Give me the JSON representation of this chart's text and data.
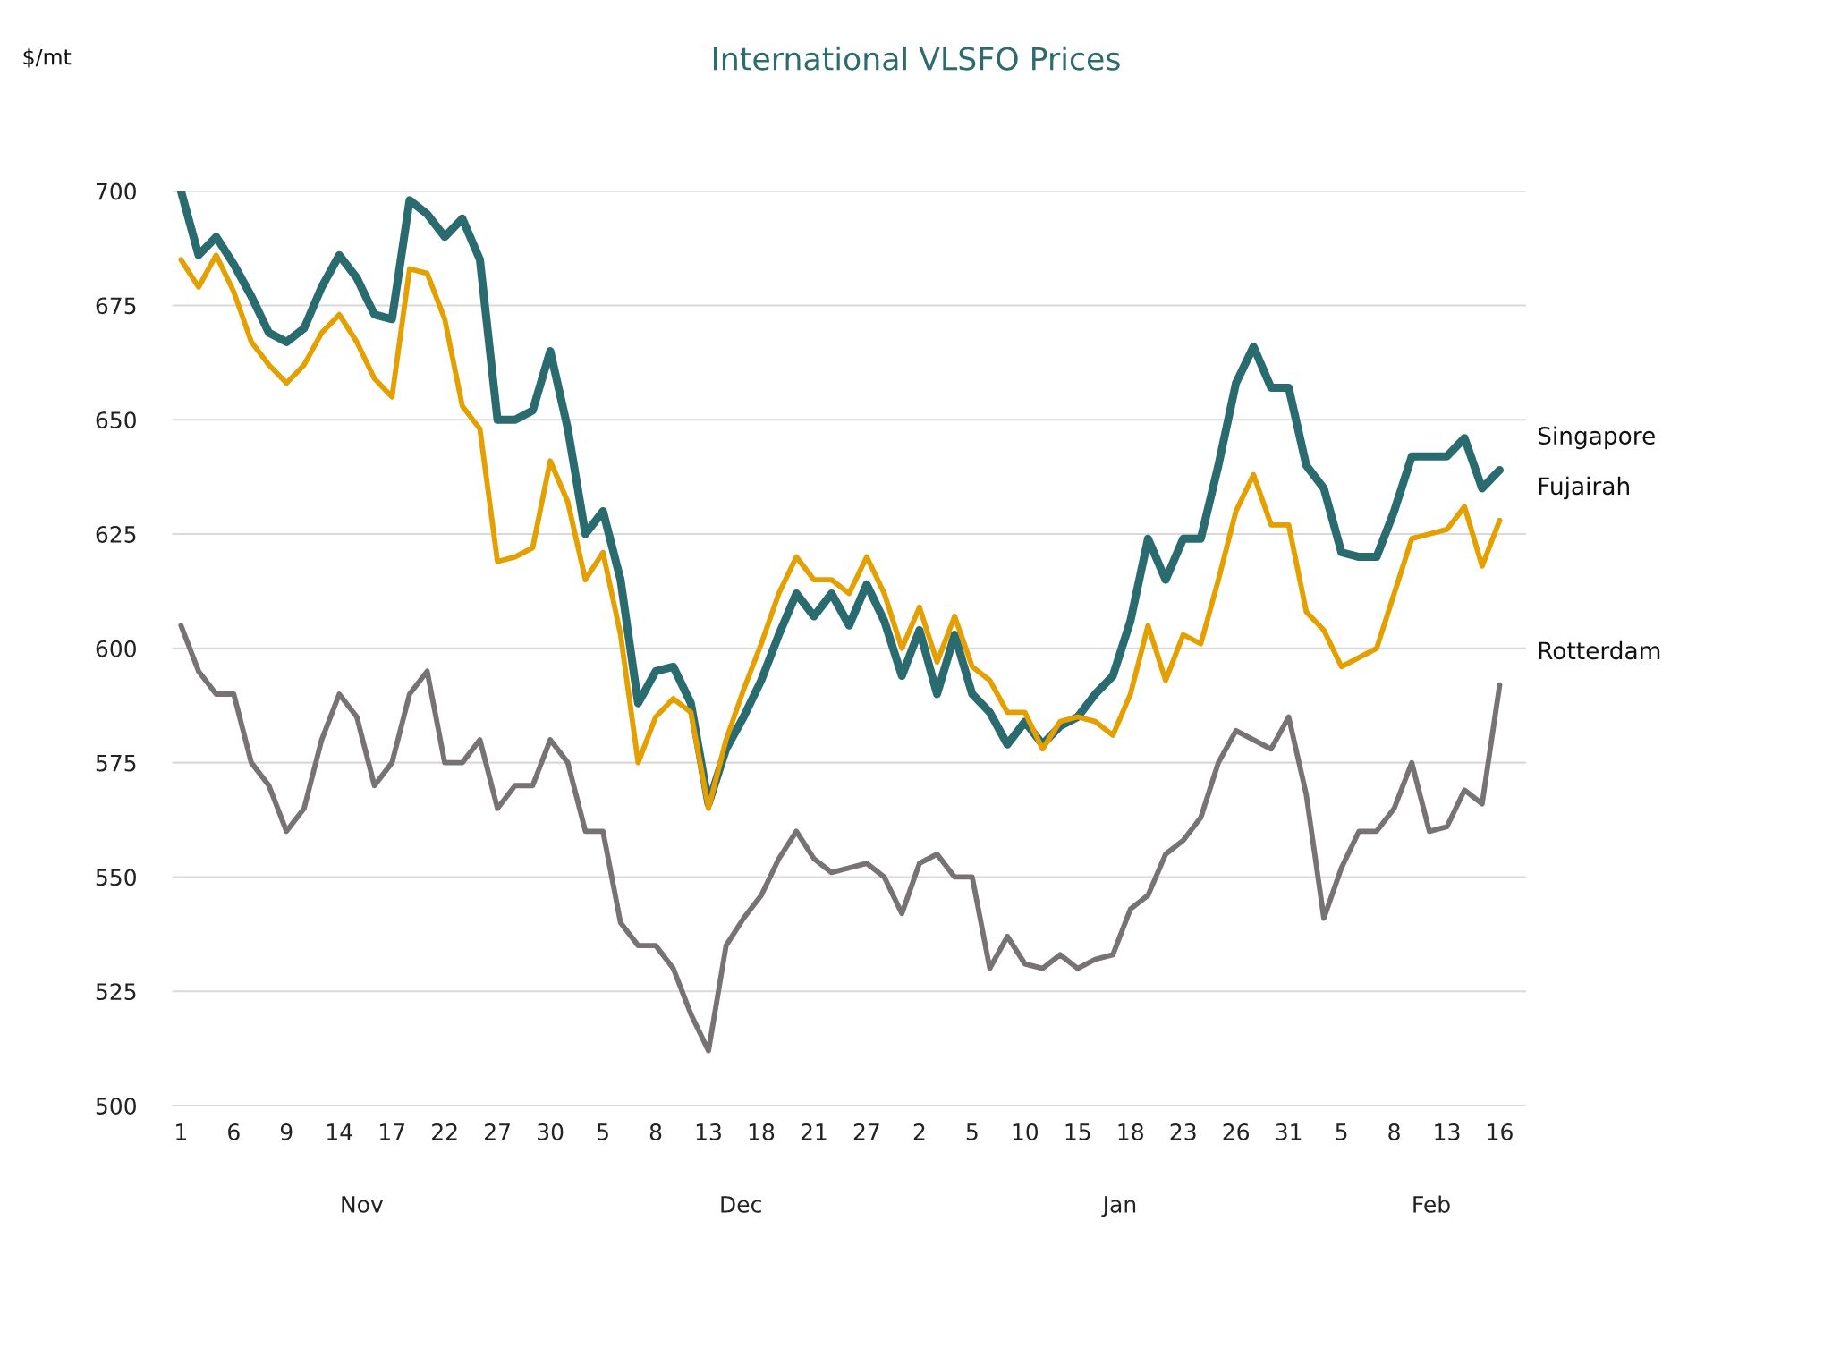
{
  "chart_data": {
    "type": "line",
    "title": "International VLSFO Prices",
    "categories": [
      "1",
      null,
      null,
      "6",
      null,
      null,
      "9",
      null,
      null,
      "14",
      null,
      null,
      "17",
      null,
      null,
      "22",
      null,
      null,
      "27",
      null,
      null,
      "30",
      null,
      null,
      "5",
      null,
      null,
      "8",
      null,
      null,
      "13",
      null,
      null,
      "18",
      null,
      null,
      "21",
      null,
      null,
      "27",
      null,
      null,
      "2",
      null,
      null,
      "5",
      null,
      null,
      "10",
      null,
      null,
      "15",
      null,
      null,
      "18",
      null,
      null,
      "23",
      null,
      null,
      "26",
      null,
      null,
      "31",
      null,
      null,
      "5",
      null,
      null,
      "8",
      null,
      null,
      "13",
      null,
      null,
      "16"
    ],
    "series": [
      {
        "name": "Singapore",
        "color": "#2a6b70",
        "values": [
          700,
          686,
          690,
          684,
          677,
          669,
          667,
          670,
          679,
          686,
          681,
          673,
          672,
          698,
          695,
          690,
          694,
          685,
          650,
          650,
          652,
          665,
          648,
          625,
          630,
          615,
          588,
          595,
          596,
          588,
          566,
          578,
          585,
          593,
          603,
          612,
          607,
          612,
          605,
          614,
          606,
          594,
          604,
          590,
          603,
          590,
          586,
          579,
          584,
          579,
          583,
          585,
          590,
          594,
          606,
          624,
          615,
          624,
          624,
          640,
          658,
          666,
          657,
          657,
          640,
          635,
          621,
          620,
          620,
          630,
          642,
          642,
          642,
          646,
          635,
          639
        ]
      },
      {
        "name": "Fujairah",
        "color": "#e3a000",
        "values": [
          685,
          679,
          686,
          678,
          667,
          662,
          658,
          662,
          669,
          673,
          667,
          659,
          655,
          683,
          682,
          672,
          653,
          648,
          619,
          620,
          622,
          641,
          632,
          615,
          621,
          603,
          575,
          585,
          589,
          586,
          565,
          580,
          591,
          601,
          612,
          620,
          615,
          615,
          612,
          620,
          612,
          600,
          609,
          597,
          607,
          596,
          593,
          586,
          586,
          578,
          584,
          585,
          584,
          581,
          590,
          605,
          593,
          603,
          601,
          615,
          630,
          638,
          627,
          627,
          608,
          604,
          596,
          598,
          600,
          612,
          624,
          625,
          626,
          631,
          618,
          628
        ]
      },
      {
        "name": "Rotterdam",
        "color": "#777273",
        "values": [
          605,
          595,
          590,
          590,
          575,
          570,
          560,
          565,
          580,
          590,
          585,
          570,
          575,
          590,
          595,
          575,
          575,
          580,
          565,
          570,
          570,
          580,
          575,
          560,
          560,
          540,
          535,
          535,
          530,
          520,
          512,
          535,
          541,
          546,
          554,
          560,
          554,
          551,
          552,
          553,
          550,
          542,
          553,
          555,
          550,
          550,
          530,
          537,
          531,
          530,
          533,
          530,
          532,
          533,
          543,
          546,
          555,
          558,
          563,
          575,
          582,
          580,
          578,
          585,
          568,
          541,
          552,
          560,
          560,
          565,
          575,
          560,
          561,
          569,
          566,
          592
        ]
      }
    ],
    "annotations": [
      "$/mt",
      "Nov",
      "Dec",
      "Jan",
      "Feb"
    ],
    "ylim": [
      500,
      700
    ],
    "yticks": [
      500,
      525,
      550,
      575,
      600,
      625,
      650,
      675,
      700
    ],
    "grid": "y",
    "legend": false,
    "marker": "none",
    "line_style": "solid"
  }
}
